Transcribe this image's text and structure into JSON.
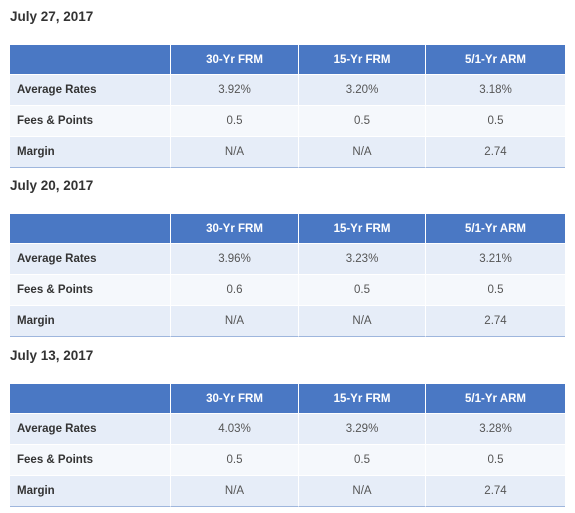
{
  "columns": [
    "",
    "30-Yr FRM",
    "15-Yr FRM",
    "5/1-Yr ARM"
  ],
  "row_labels": [
    "Average Rates",
    "Fees & Points",
    "Margin"
  ],
  "colors": {
    "header_bg": "#4a78c4",
    "row_odd_bg": "#e6edf8",
    "row_even_bg": "#f5f8fc"
  },
  "sections": [
    {
      "date": "July 27, 2017",
      "rows": [
        [
          "3.92%",
          "3.20%",
          "3.18%"
        ],
        [
          "0.5",
          "0.5",
          "0.5"
        ],
        [
          "N/A",
          "N/A",
          "2.74"
        ]
      ]
    },
    {
      "date": "July 20, 2017",
      "rows": [
        [
          "3.96%",
          "3.23%",
          "3.21%"
        ],
        [
          "0.6",
          "0.5",
          "0.5"
        ],
        [
          "N/A",
          "N/A",
          "2.74"
        ]
      ]
    },
    {
      "date": "July 13, 2017",
      "rows": [
        [
          "4.03%",
          "3.29%",
          "3.28%"
        ],
        [
          "0.5",
          "0.5",
          "0.5"
        ],
        [
          "N/A",
          "N/A",
          "2.74"
        ]
      ]
    }
  ]
}
